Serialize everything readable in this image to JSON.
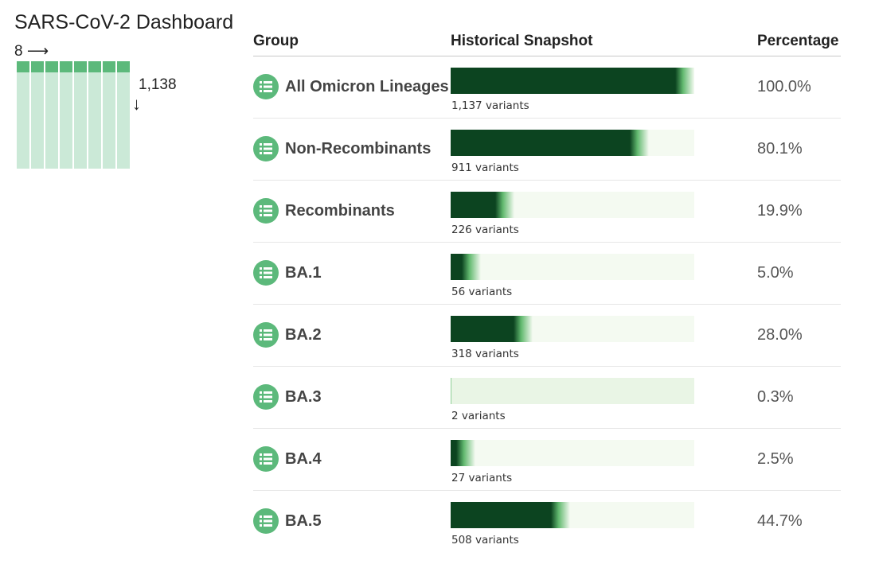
{
  "dashboard": {
    "title": "SARS-CoV-2 Dashboard",
    "columns_label": "8 ⟶",
    "rows_label": "1,138",
    "rows_arrow": "↓"
  },
  "shape_grid": {
    "columns": 8
  },
  "table": {
    "headers": {
      "group": "Group",
      "snapshot": "Historical Snapshot",
      "percentage": "Percentage"
    },
    "rows": [
      {
        "name": "All Omicron Lineages",
        "variants": "1,137 variants",
        "percentage": "100.0%",
        "fraction": 1.0
      },
      {
        "name": "Non-Recombinants",
        "variants": "911 variants",
        "percentage": "80.1%",
        "fraction": 0.801
      },
      {
        "name": "Recombinants",
        "variants": "226 variants",
        "percentage": "19.9%",
        "fraction": 0.199
      },
      {
        "name": "BA.1",
        "variants": "56 variants",
        "percentage": "5.0%",
        "fraction": 0.05
      },
      {
        "name": "BA.2",
        "variants": "318 variants",
        "percentage": "28.0%",
        "fraction": 0.28
      },
      {
        "name": "BA.3",
        "variants": "2 variants",
        "percentage": "0.3%",
        "fraction": 0.003
      },
      {
        "name": "BA.4",
        "variants": "27 variants",
        "percentage": "2.5%",
        "fraction": 0.025
      },
      {
        "name": "BA.5",
        "variants": "508 variants",
        "percentage": "44.7%",
        "fraction": 0.447
      }
    ]
  },
  "colors": {
    "bar_dark": "#0c4420",
    "bar_fade": "#62b96f",
    "bar_track": "#f4faf1",
    "bar_track_empty": "#e9f5e5",
    "icon_bg": "#5cb97b",
    "grid_head": "#5cb97b",
    "grid_body": "#cbe9d7"
  },
  "icons": {
    "row_icon": "list-icon"
  }
}
